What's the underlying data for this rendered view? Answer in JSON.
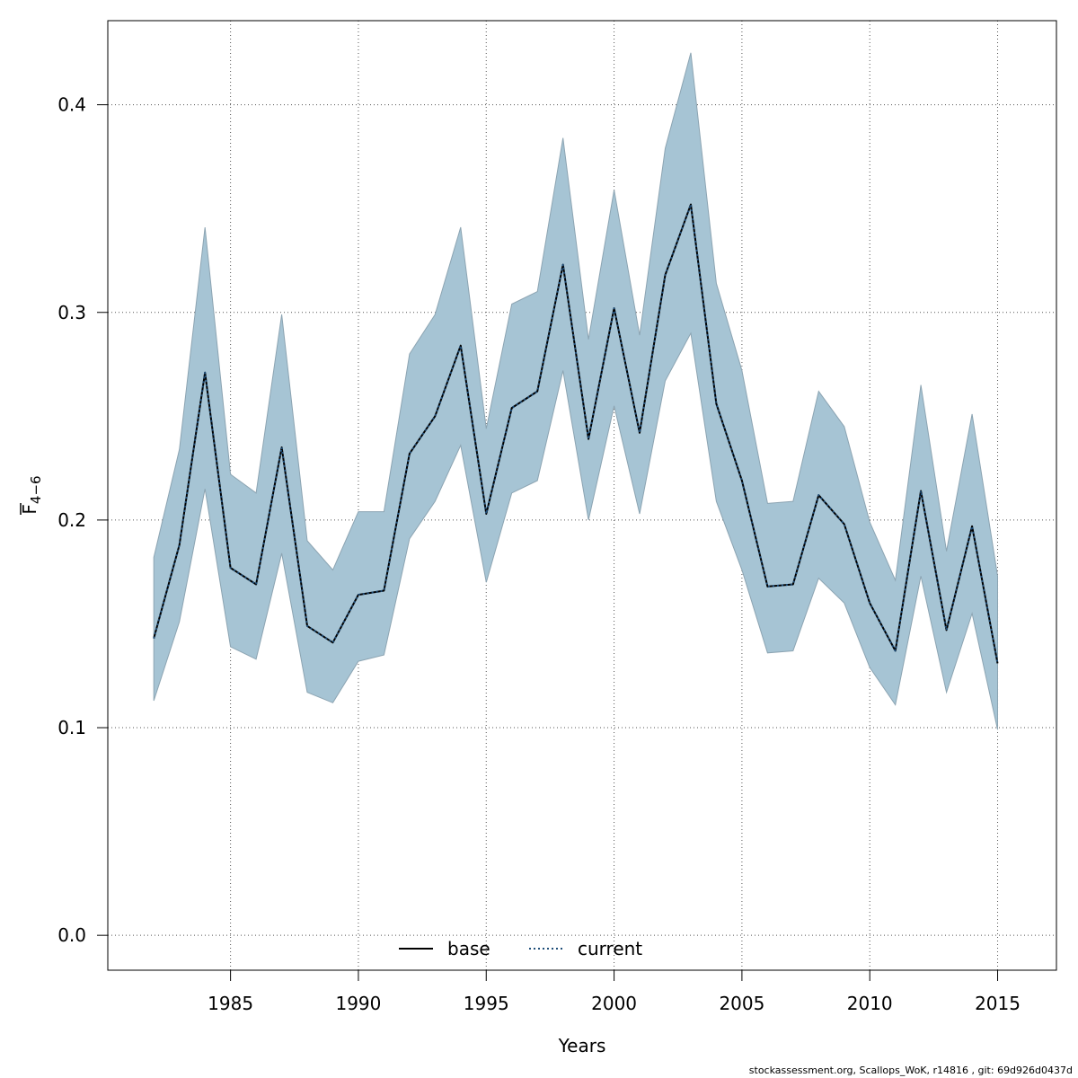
{
  "chart_data": {
    "type": "line",
    "title": "",
    "xlabel": "Years",
    "ylabel_main": "F",
    "ylabel_sub": "4−6",
    "xlim": [
      1980.2,
      2017.3
    ],
    "ylim": [
      -0.0168,
      0.4405
    ],
    "x_ticks": [
      1985,
      1990,
      1995,
      2000,
      2005,
      2010,
      2015
    ],
    "x_tick_labels": [
      "1985",
      "1990",
      "1995",
      "2000",
      "2005",
      "2010",
      "2015"
    ],
    "y_ticks": [
      0.0,
      0.1,
      0.2,
      0.3,
      0.4
    ],
    "y_tick_labels": [
      "0.0",
      "0.1",
      "0.2",
      "0.3",
      "0.4"
    ],
    "grid": true,
    "x": [
      1982,
      1983,
      1984,
      1985,
      1986,
      1987,
      1988,
      1989,
      1990,
      1991,
      1992,
      1993,
      1994,
      1995,
      1996,
      1997,
      1998,
      1999,
      2000,
      2001,
      2002,
      2003,
      2004,
      2005,
      2006,
      2007,
      2008,
      2009,
      2010,
      2011,
      2012,
      2013,
      2014,
      2015
    ],
    "series": [
      {
        "name": "base",
        "style": "solid",
        "color": "#000000",
        "values": [
          0.143,
          0.188,
          0.271,
          0.177,
          0.169,
          0.235,
          0.149,
          0.141,
          0.164,
          0.166,
          0.232,
          0.25,
          0.284,
          0.203,
          0.254,
          0.262,
          0.323,
          0.239,
          0.302,
          0.242,
          0.318,
          0.352,
          0.256,
          0.219,
          0.168,
          0.169,
          0.212,
          0.198,
          0.16,
          0.137,
          0.214,
          0.147,
          0.197,
          0.131
        ]
      },
      {
        "name": "current",
        "style": "dotted",
        "color": "#1f4e79",
        "values": [
          0.143,
          0.188,
          0.271,
          0.177,
          0.169,
          0.235,
          0.149,
          0.141,
          0.164,
          0.166,
          0.232,
          0.25,
          0.284,
          0.203,
          0.254,
          0.262,
          0.323,
          0.239,
          0.302,
          0.242,
          0.318,
          0.352,
          0.256,
          0.219,
          0.168,
          0.169,
          0.212,
          0.198,
          0.16,
          0.137,
          0.214,
          0.147,
          0.197,
          0.131
        ]
      }
    ],
    "band": {
      "color": "#a6c4d4",
      "edge": "#8ca4b2",
      "lower": [
        0.113,
        0.151,
        0.215,
        0.139,
        0.133,
        0.184,
        0.117,
        0.112,
        0.132,
        0.135,
        0.191,
        0.209,
        0.236,
        0.17,
        0.213,
        0.219,
        0.272,
        0.2,
        0.255,
        0.203,
        0.267,
        0.29,
        0.209,
        0.176,
        0.136,
        0.137,
        0.172,
        0.16,
        0.129,
        0.111,
        0.173,
        0.117,
        0.155,
        0.099
      ],
      "upper": [
        0.182,
        0.234,
        0.341,
        0.222,
        0.213,
        0.299,
        0.19,
        0.176,
        0.204,
        0.204,
        0.28,
        0.299,
        0.341,
        0.244,
        0.304,
        0.31,
        0.384,
        0.287,
        0.359,
        0.289,
        0.379,
        0.425,
        0.314,
        0.272,
        0.208,
        0.209,
        0.262,
        0.245,
        0.199,
        0.171,
        0.265,
        0.185,
        0.251,
        0.173
      ]
    },
    "legend": {
      "position": "bottom-center",
      "entries": [
        {
          "label": "base",
          "style": "solid",
          "color": "#000000"
        },
        {
          "label": "current",
          "style": "dotted",
          "color": "#1f4e79"
        }
      ]
    }
  },
  "footer": {
    "text": "stockassessment.org, Scallops_WoK, r14816 , git: 69d926d0437d"
  }
}
